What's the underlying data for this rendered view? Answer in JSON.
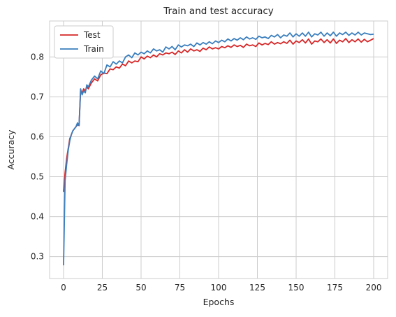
{
  "chart_data": {
    "type": "line",
    "title": "Train and test accuracy",
    "xlabel": "Epochs",
    "ylabel": "Accuracy",
    "xlim": [
      -9,
      209
    ],
    "ylim": [
      0.245,
      0.89
    ],
    "xticks": [
      0,
      25,
      50,
      75,
      100,
      125,
      150,
      175,
      200
    ],
    "yticks": [
      0.3,
      0.4,
      0.5,
      0.6,
      0.7,
      0.8
    ],
    "grid": true,
    "legend_position": "top-left",
    "x": [
      0,
      1,
      2,
      3,
      4,
      5,
      6,
      7,
      8,
      9,
      10,
      11,
      12,
      13,
      14,
      15,
      16,
      18,
      20,
      22,
      24,
      26,
      28,
      30,
      32,
      34,
      36,
      38,
      40,
      42,
      44,
      46,
      48,
      50,
      52,
      54,
      56,
      58,
      60,
      62,
      64,
      66,
      68,
      70,
      72,
      74,
      76,
      78,
      80,
      82,
      84,
      86,
      88,
      90,
      92,
      94,
      96,
      98,
      100,
      102,
      104,
      106,
      108,
      110,
      112,
      114,
      116,
      118,
      120,
      122,
      124,
      126,
      128,
      130,
      132,
      134,
      136,
      138,
      140,
      142,
      144,
      146,
      148,
      150,
      152,
      154,
      156,
      158,
      160,
      162,
      164,
      166,
      168,
      170,
      172,
      174,
      176,
      178,
      180,
      182,
      184,
      186,
      188,
      190,
      192,
      194,
      196,
      198,
      200
    ],
    "series": [
      {
        "name": "Test",
        "color": "#d62728",
        "values": [
          0.462,
          0.51,
          0.545,
          0.57,
          0.595,
          0.605,
          0.615,
          0.62,
          0.625,
          0.63,
          0.628,
          0.715,
          0.71,
          0.72,
          0.715,
          0.725,
          0.72,
          0.735,
          0.745,
          0.74,
          0.755,
          0.76,
          0.758,
          0.77,
          0.768,
          0.775,
          0.772,
          0.782,
          0.778,
          0.79,
          0.785,
          0.79,
          0.788,
          0.8,
          0.795,
          0.802,
          0.798,
          0.805,
          0.8,
          0.808,
          0.805,
          0.81,
          0.808,
          0.812,
          0.806,
          0.815,
          0.81,
          0.818,
          0.812,
          0.82,
          0.815,
          0.818,
          0.814,
          0.822,
          0.818,
          0.825,
          0.82,
          0.823,
          0.82,
          0.826,
          0.823,
          0.828,
          0.824,
          0.83,
          0.826,
          0.829,
          0.824,
          0.832,
          0.828,
          0.83,
          0.826,
          0.835,
          0.83,
          0.834,
          0.831,
          0.838,
          0.832,
          0.836,
          0.833,
          0.838,
          0.834,
          0.842,
          0.832,
          0.84,
          0.836,
          0.843,
          0.835,
          0.845,
          0.832,
          0.84,
          0.838,
          0.845,
          0.836,
          0.843,
          0.835,
          0.845,
          0.834,
          0.842,
          0.838,
          0.846,
          0.836,
          0.843,
          0.838,
          0.845,
          0.837,
          0.844,
          0.838,
          0.842,
          0.846
        ]
      },
      {
        "name": "Train",
        "color": "#3a7ebd",
        "values": [
          0.278,
          0.49,
          0.53,
          0.565,
          0.59,
          0.605,
          0.615,
          0.62,
          0.625,
          0.635,
          0.628,
          0.72,
          0.705,
          0.715,
          0.71,
          0.73,
          0.725,
          0.742,
          0.752,
          0.745,
          0.765,
          0.758,
          0.78,
          0.775,
          0.788,
          0.782,
          0.79,
          0.785,
          0.8,
          0.805,
          0.798,
          0.81,
          0.805,
          0.812,
          0.808,
          0.815,
          0.81,
          0.82,
          0.815,
          0.818,
          0.812,
          0.825,
          0.82,
          0.826,
          0.818,
          0.83,
          0.825,
          0.83,
          0.828,
          0.832,
          0.826,
          0.835,
          0.83,
          0.836,
          0.832,
          0.838,
          0.833,
          0.84,
          0.836,
          0.842,
          0.838,
          0.845,
          0.84,
          0.846,
          0.842,
          0.848,
          0.843,
          0.85,
          0.845,
          0.848,
          0.844,
          0.852,
          0.848,
          0.85,
          0.846,
          0.854,
          0.85,
          0.856,
          0.848,
          0.855,
          0.852,
          0.86,
          0.85,
          0.858,
          0.852,
          0.86,
          0.852,
          0.862,
          0.85,
          0.858,
          0.855,
          0.862,
          0.852,
          0.86,
          0.853,
          0.862,
          0.852,
          0.86,
          0.856,
          0.862,
          0.854,
          0.86,
          0.855,
          0.862,
          0.855,
          0.86,
          0.858,
          0.856,
          0.857
        ]
      }
    ]
  }
}
